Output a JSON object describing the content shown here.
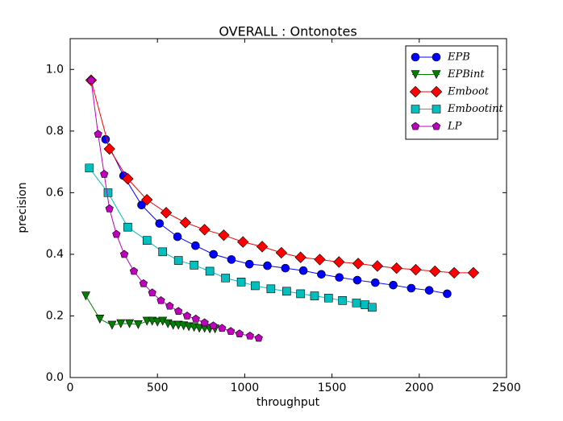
{
  "chart_data": {
    "type": "line",
    "title": "OVERALL : Ontonotes",
    "x_label": "throughput",
    "y_label": "precision",
    "xlim": [
      0,
      2500
    ],
    "xticks": [
      0,
      500,
      1000,
      1500,
      2000,
      2500
    ],
    "ylim": [
      0,
      1.1
    ],
    "yticks": [
      {
        "value": 0,
        "label": "0.0"
      },
      0.2,
      0.4,
      0.6,
      0.8,
      {
        "value": 1,
        "label": "1.0"
      }
    ],
    "grid": false,
    "legend": "upper right",
    "series": [
      {
        "name": "EPB",
        "color": "#0000ff",
        "marker": "circle",
        "x": [
          203,
          306,
          409,
          512,
          615,
          718,
          821,
          924,
          1027,
          1130,
          1233,
          1336,
          1439,
          1542,
          1645,
          1748,
          1851,
          1954,
          2057,
          2160
        ],
        "values": [
          0.773,
          0.655,
          0.56,
          0.5,
          0.457,
          0.428,
          0.4,
          0.383,
          0.368,
          0.363,
          0.355,
          0.347,
          0.335,
          0.325,
          0.316,
          0.308,
          0.3,
          0.29,
          0.283,
          0.272
        ]
      },
      {
        "name": "EPBint",
        "color": "#008000",
        "marker": "triangle-down",
        "x": [
          90,
          170,
          240,
          290,
          340,
          390,
          440,
          470,
          500,
          530,
          560,
          590,
          620,
          650,
          680,
          710,
          740,
          770,
          800,
          830
        ],
        "values": [
          0.265,
          0.19,
          0.17,
          0.175,
          0.175,
          0.172,
          0.183,
          0.183,
          0.18,
          0.183,
          0.175,
          0.17,
          0.17,
          0.168,
          0.165,
          0.163,
          0.16,
          0.16,
          0.158,
          0.158
        ]
      },
      {
        "name": "Emboot",
        "color": "#ff0000",
        "marker": "diamond",
        "x": [
          120,
          225,
          330,
          440,
          550,
          660,
          770,
          880,
          990,
          1100,
          1210,
          1320,
          1430,
          1540,
          1650,
          1760,
          1870,
          1980,
          2090,
          2200,
          2310
        ],
        "values": [
          0.965,
          0.742,
          0.645,
          0.577,
          0.535,
          0.503,
          0.48,
          0.462,
          0.44,
          0.425,
          0.405,
          0.39,
          0.383,
          0.375,
          0.37,
          0.362,
          0.355,
          0.35,
          0.345,
          0.34,
          0.34
        ]
      },
      {
        "name": "Embootint",
        "color": "#00bfbf",
        "marker": "square",
        "x": [
          110,
          217,
          330,
          440,
          530,
          620,
          710,
          800,
          890,
          980,
          1060,
          1150,
          1240,
          1320,
          1400,
          1480,
          1560,
          1640,
          1690,
          1730
        ],
        "values": [
          0.68,
          0.6,
          0.488,
          0.445,
          0.408,
          0.38,
          0.365,
          0.345,
          0.323,
          0.31,
          0.298,
          0.288,
          0.28,
          0.272,
          0.265,
          0.258,
          0.25,
          0.242,
          0.236,
          0.228
        ]
      },
      {
        "name": "LP",
        "color": "#bf00bf",
        "marker": "pentagon",
        "x": [
          120,
          160,
          195,
          225,
          265,
          310,
          365,
          420,
          470,
          520,
          570,
          620,
          670,
          720,
          770,
          820,
          870,
          920,
          970,
          1030,
          1080
        ],
        "values": [
          0.965,
          0.79,
          0.66,
          0.548,
          0.465,
          0.4,
          0.345,
          0.305,
          0.275,
          0.25,
          0.232,
          0.215,
          0.2,
          0.19,
          0.178,
          0.168,
          0.16,
          0.15,
          0.142,
          0.135,
          0.128
        ]
      }
    ]
  }
}
